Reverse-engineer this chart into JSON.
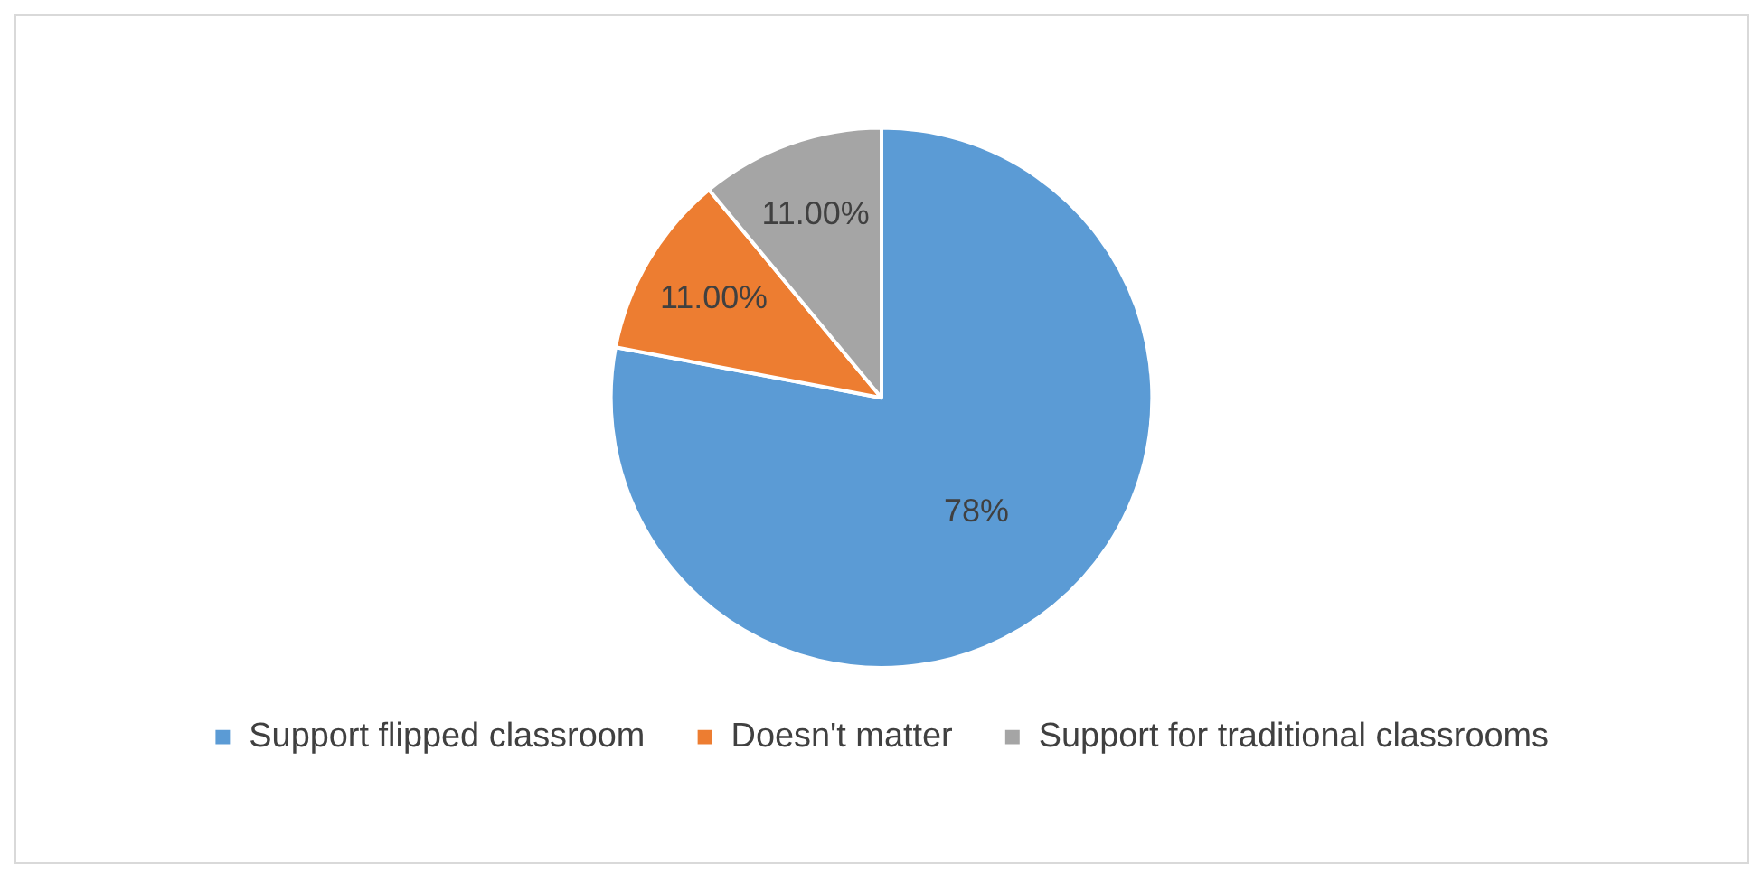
{
  "chart_data": {
    "type": "pie",
    "categories": [
      "Support flipped classroom",
      "Doesn't matter",
      "Support for traditional classrooms"
    ],
    "values": [
      78,
      11,
      11
    ],
    "colors": [
      "#5b9bd5",
      "#ed7d31",
      "#a5a5a5"
    ],
    "value_labels": [
      "78%",
      "11.00%",
      "11.00%"
    ],
    "legend": "bottom"
  }
}
